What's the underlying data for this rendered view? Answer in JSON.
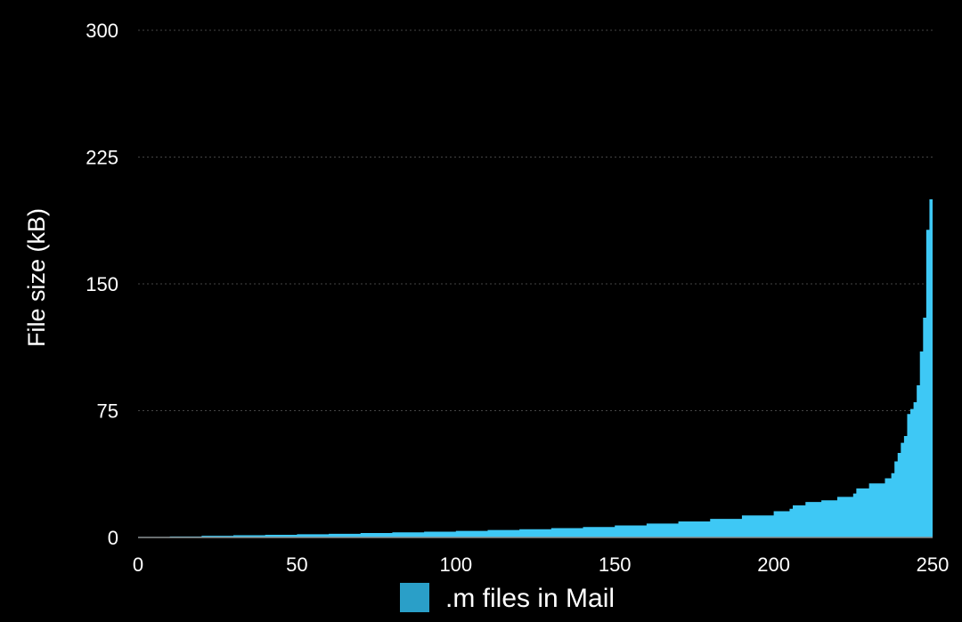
{
  "chart_data": {
    "type": "area",
    "title": "",
    "xlabel": "",
    "ylabel": "File size (kB)",
    "xlim": [
      0,
      250
    ],
    "ylim": [
      0,
      300
    ],
    "x_ticks": [
      "0",
      "50",
      "100",
      "150",
      "200",
      "250"
    ],
    "y_ticks": [
      "0",
      "75",
      "150",
      "225",
      "300"
    ],
    "grid": true,
    "legend_position": "bottom-center",
    "series": [
      {
        "name": ".m files in Mail",
        "color": "#3ec8f5",
        "points": [
          [
            0,
            0.3
          ],
          [
            10,
            0.6
          ],
          [
            20,
            1.0
          ],
          [
            30,
            1.3
          ],
          [
            40,
            1.6
          ],
          [
            50,
            1.9
          ],
          [
            60,
            2.2
          ],
          [
            70,
            2.6
          ],
          [
            80,
            3.0
          ],
          [
            90,
            3.4
          ],
          [
            100,
            3.9
          ],
          [
            110,
            4.4
          ],
          [
            120,
            4.9
          ],
          [
            130,
            5.5
          ],
          [
            140,
            6.2
          ],
          [
            150,
            7.1
          ],
          [
            160,
            8.2
          ],
          [
            170,
            9.5
          ],
          [
            180,
            11
          ],
          [
            190,
            13
          ],
          [
            200,
            15.5
          ],
          [
            205,
            17
          ],
          [
            206,
            19
          ],
          [
            210,
            21
          ],
          [
            215,
            22
          ],
          [
            220,
            24
          ],
          [
            225,
            26
          ],
          [
            226,
            29
          ],
          [
            230,
            32
          ],
          [
            235,
            35
          ],
          [
            237,
            38
          ],
          [
            238,
            45
          ],
          [
            239,
            50
          ],
          [
            240,
            56
          ],
          [
            241,
            60
          ],
          [
            242,
            73
          ],
          [
            243,
            76
          ],
          [
            244,
            80
          ],
          [
            245,
            90
          ],
          [
            246,
            110
          ],
          [
            247,
            130
          ],
          [
            248,
            182
          ],
          [
            249,
            200
          ],
          [
            250,
            200
          ]
        ]
      }
    ]
  }
}
